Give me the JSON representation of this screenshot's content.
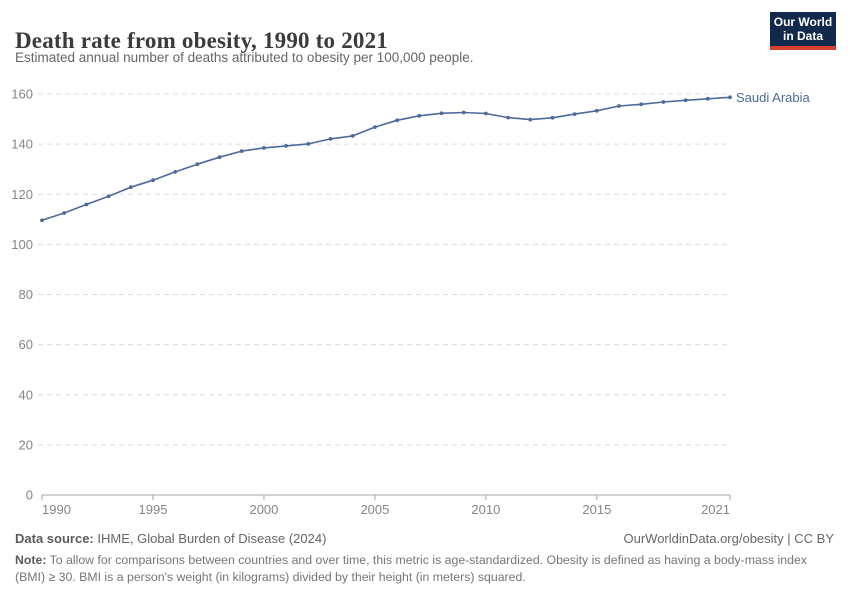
{
  "header": {
    "title": "Death rate from obesity, 1990 to 2021",
    "subtitle": "Estimated annual number of deaths attributed to obesity per 100,000 people.",
    "logo": {
      "line1": "Our World",
      "line2": "in Data",
      "bg": "#12294e",
      "accent": "#d7402f"
    }
  },
  "chart_data": {
    "type": "line",
    "title": "Death rate from obesity, 1990 to 2021",
    "xlabel": "",
    "ylabel": "",
    "x": [
      1990,
      1991,
      1992,
      1993,
      1994,
      1995,
      1996,
      1997,
      1998,
      1999,
      2000,
      2001,
      2002,
      2003,
      2004,
      2005,
      2006,
      2007,
      2008,
      2009,
      2010,
      2011,
      2012,
      2013,
      2014,
      2015,
      2016,
      2017,
      2018,
      2019,
      2020,
      2021
    ],
    "series": [
      {
        "name": "Saudi Arabia",
        "color": "#4c6a9c",
        "values": [
          109.6,
          112.5,
          115.9,
          119.2,
          122.8,
          125.6,
          128.9,
          132.0,
          134.8,
          137.2,
          138.5,
          139.3,
          140.1,
          142.1,
          143.3,
          146.8,
          149.5,
          151.3,
          152.3,
          152.6,
          152.2,
          150.6,
          149.8,
          150.5,
          152.0,
          153.3,
          155.2,
          155.9,
          156.8,
          157.5,
          158.1,
          158.7
        ]
      }
    ],
    "ylim": [
      0,
      160
    ],
    "yticks": [
      0,
      20,
      40,
      60,
      80,
      100,
      120,
      140,
      160
    ],
    "xticks": [
      1990,
      1995,
      2000,
      2005,
      2010,
      2015,
      2021
    ],
    "grid": "horizontal-dashed",
    "legend": "end-of-line-label"
  },
  "footer": {
    "datasource_label": "Data source:",
    "datasource_value": " IHME, Global Burden of Disease (2024)",
    "rights": "OurWorldinData.org/obesity | CC BY",
    "note_label": "Note:",
    "note_value": " To allow for comparisons between countries and over time, this metric is age-standardized. Obesity is defined as having a body-mass index (BMI) ≥ 30. BMI is a person's weight (in kilograms) divided by their height (in meters) squared."
  },
  "colors": {
    "line": "#4c6a9c",
    "grid": "#dcdcdc",
    "axis": "#a6a6a6",
    "tick_label": "#858585",
    "title": "#3b3b3b",
    "subtitle": "#666666",
    "logo_bg": "#12294e",
    "logo_accent": "#d7402f"
  }
}
